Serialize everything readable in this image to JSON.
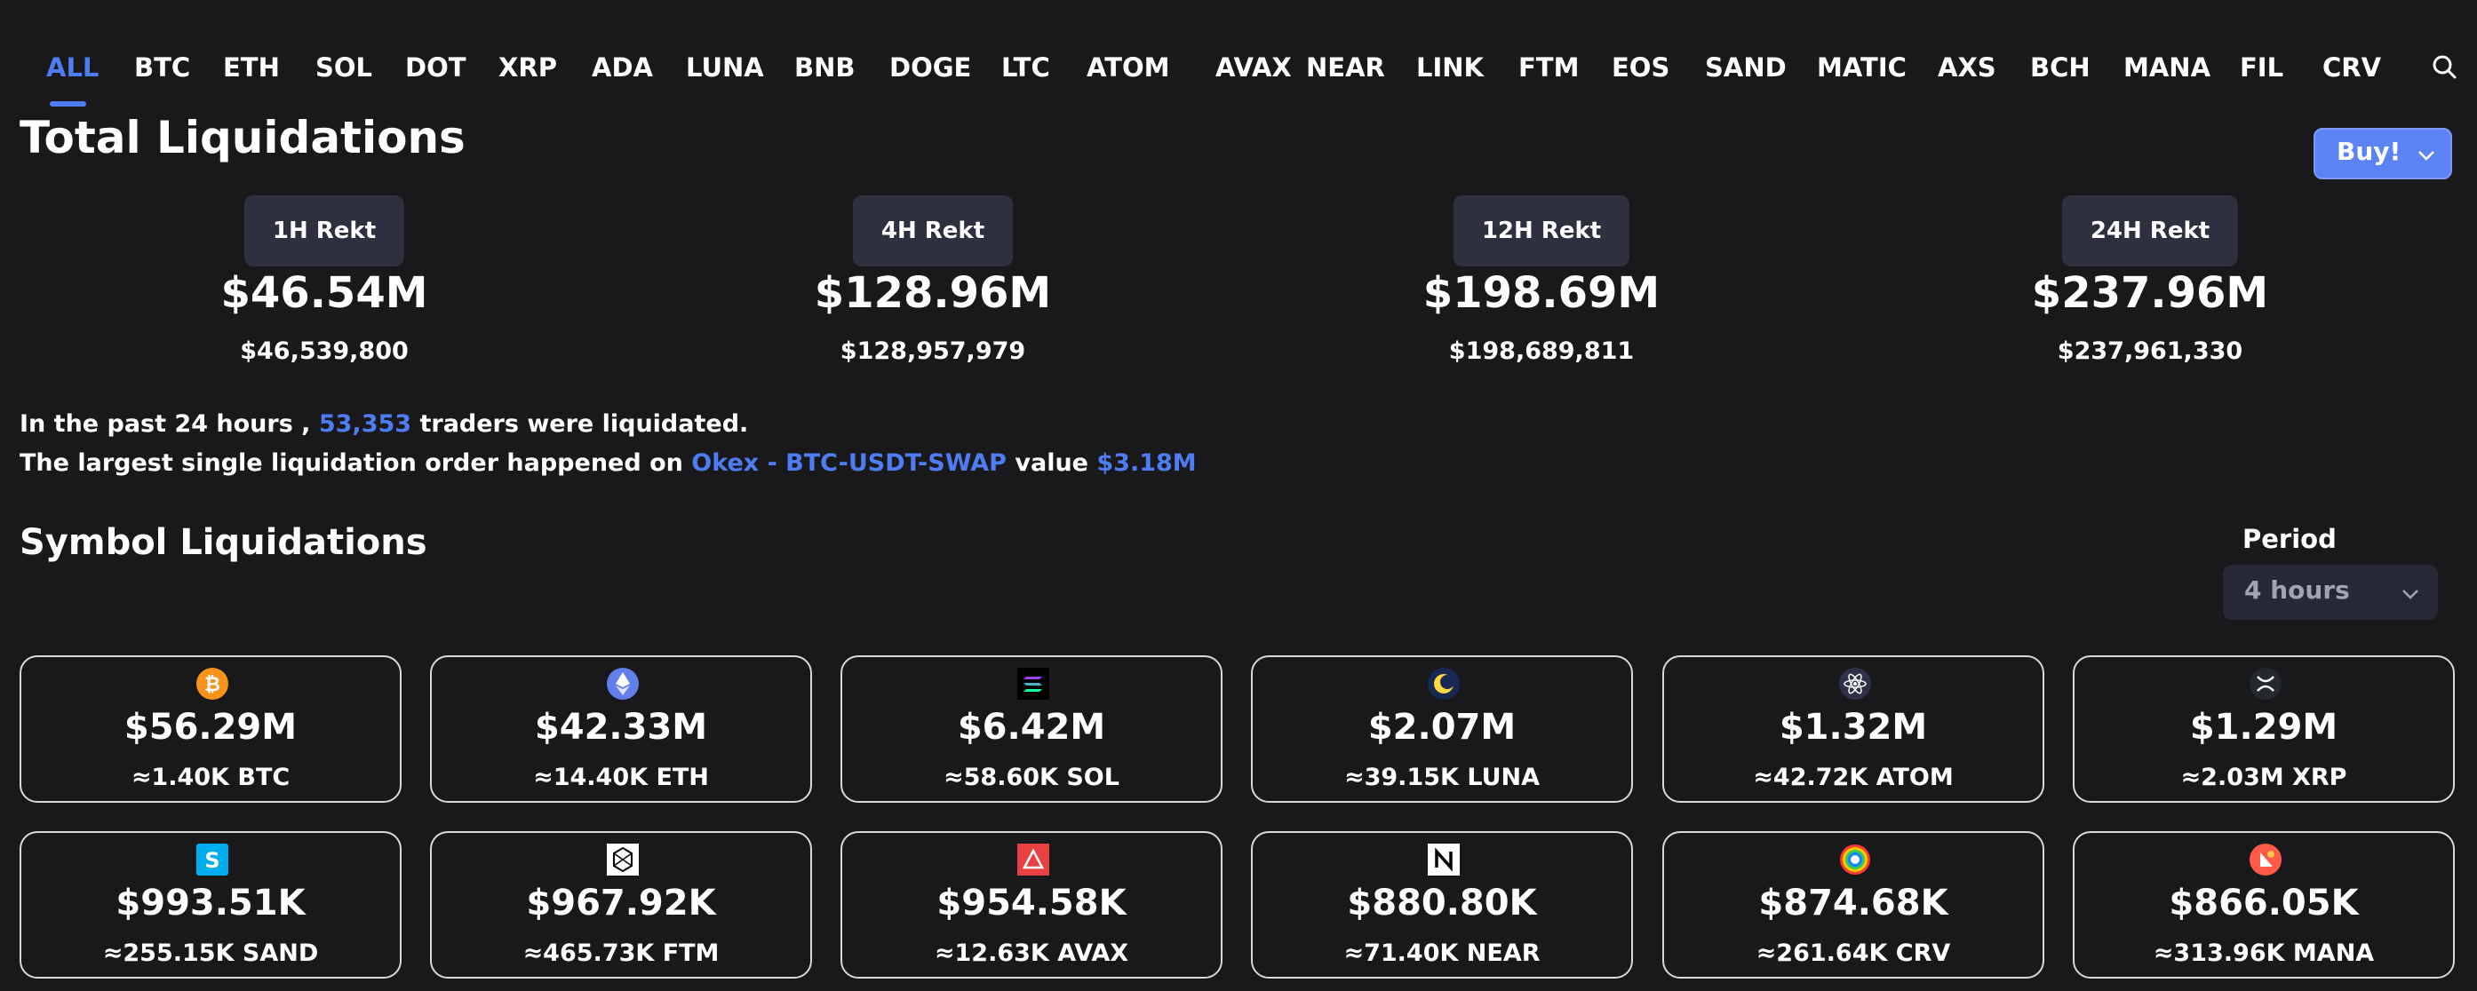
{
  "tabs": [
    "ALL",
    "BTC",
    "ETH",
    "SOL",
    "DOT",
    "XRP",
    "ADA",
    "LUNA",
    "BNB",
    "DOGE",
    "LTC",
    "ATOM",
    "AVAX",
    "NEAR",
    "LINK",
    "FTM",
    "EOS",
    "SAND",
    "MATIC",
    "AXS",
    "BCH",
    "MANA",
    "FIL",
    "CRV"
  ],
  "active_tab": "ALL",
  "title": "Total Liquidations",
  "buy_label": "Buy!",
  "stats": [
    {
      "label": "1H Rekt",
      "value": "$46.54M",
      "exact": "$46,539,800"
    },
    {
      "label": "4H Rekt",
      "value": "$128.96M",
      "exact": "$128,957,979"
    },
    {
      "label": "12H Rekt",
      "value": "$198.69M",
      "exact": "$198,689,811"
    },
    {
      "label": "24H Rekt",
      "value": "$237.96M",
      "exact": "$237,961,330"
    }
  ],
  "info": {
    "line1_prefix": "In the past 24 hours ,",
    "traders_count": "53,353",
    "line1_suffix": "traders were liquidated.",
    "line2_prefix": "The largest single liquidation order happened on",
    "exchange_pair": "Okex - BTC-USDT-SWAP",
    "value_word": "value",
    "largest_value": "$3.18M"
  },
  "symbol_title": "Symbol Liquidations",
  "period": {
    "label": "Period",
    "value": "4 hours"
  },
  "colors": {
    "accent": "#4e7cf2",
    "background": "#19191c",
    "buy_button": "#5b83f3"
  },
  "cards": [
    {
      "symbol": "BTC",
      "icon": "btc-icon",
      "amount": "$56.29M",
      "qty": "≈1.40K BTC"
    },
    {
      "symbol": "ETH",
      "icon": "eth-icon",
      "amount": "$42.33M",
      "qty": "≈14.40K ETH"
    },
    {
      "symbol": "SOL",
      "icon": "sol-icon",
      "amount": "$6.42M",
      "qty": "≈58.60K SOL"
    },
    {
      "symbol": "LUNA",
      "icon": "luna-icon",
      "amount": "$2.07M",
      "qty": "≈39.15K LUNA"
    },
    {
      "symbol": "ATOM",
      "icon": "atom-icon",
      "amount": "$1.32M",
      "qty": "≈42.72K ATOM"
    },
    {
      "symbol": "XRP",
      "icon": "xrp-icon",
      "amount": "$1.29M",
      "qty": "≈2.03M XRP"
    },
    {
      "symbol": "SAND",
      "icon": "sand-icon",
      "amount": "$993.51K",
      "qty": "≈255.15K SAND"
    },
    {
      "symbol": "FTM",
      "icon": "ftm-icon",
      "amount": "$967.92K",
      "qty": "≈465.73K FTM"
    },
    {
      "symbol": "AVAX",
      "icon": "avax-icon",
      "amount": "$954.58K",
      "qty": "≈12.63K AVAX"
    },
    {
      "symbol": "NEAR",
      "icon": "near-icon",
      "amount": "$880.80K",
      "qty": "≈71.40K NEAR"
    },
    {
      "symbol": "CRV",
      "icon": "crv-icon",
      "amount": "$874.68K",
      "qty": "≈261.64K CRV"
    },
    {
      "symbol": "MANA",
      "icon": "mana-icon",
      "amount": "$866.05K",
      "qty": "≈313.96K MANA"
    }
  ]
}
